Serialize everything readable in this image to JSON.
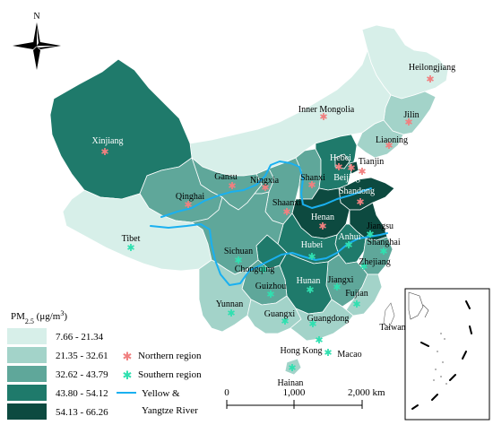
{
  "north_label": "N",
  "colors": {
    "class1": "#d7efe9",
    "class2": "#a3d3c9",
    "class3": "#5fa79a",
    "class4": "#1f7a6b",
    "class5": "#0d4a40",
    "northern_marker": "#f08080",
    "southern_marker": "#2fe0b0",
    "river": "#1ab0f0"
  },
  "legend": {
    "title_main": "PM",
    "title_sub": "2.5",
    "title_unit": " (μg/m",
    "title_sup": "3",
    "title_close": ")",
    "classes": [
      "7.66 - 21.34",
      "21.35 - 32.61",
      "32.62 - 43.79",
      "43.80 - 54.12",
      "54.13 - 66.26"
    ],
    "northern": "Northern region",
    "southern": "Southern region",
    "river_line1": "Yellow &",
    "river_line2": "Yangtze River"
  },
  "scale": {
    "labels": [
      "0",
      "1,000",
      "2,000 km"
    ]
  },
  "provinces": {
    "heilongjiang": "Heilongjiang",
    "jilin": "Jilin",
    "liaoning": "Liaoning",
    "inner_mongolia": "Inner Mongolia",
    "xinjiang": "Xinjiang",
    "gansu": "Gansu",
    "ningxia": "Ningxia",
    "qinghai": "Qinghai",
    "shanxi": "Shanxi",
    "hebei": "Hebei",
    "beijing": "Beijing",
    "tianjin": "Tianjin",
    "shandong": "Shandong",
    "shaanxi": "Shaanxi",
    "henan": "Henan",
    "tibet": "Tibet",
    "sichuan": "Sichuan",
    "chongqing": "Chongqing",
    "hubei": "Hubei",
    "anhui": "Anhui",
    "jiangsu": "Jiangsu",
    "shanghai": "Shanghai",
    "zhejiang": "Zhejiang",
    "guizhou": "Guizhou",
    "hunan": "Hunan",
    "jiangxi": "Jiangxi",
    "fujian": "Fujian",
    "yunnan": "Yunnan",
    "guangxi": "Guangxi",
    "guangdong": "Guangdong",
    "taiwan": "Taiwan",
    "hong_kong": "Hong Kong",
    "macao": "Macao",
    "hainan": "Hainan"
  }
}
